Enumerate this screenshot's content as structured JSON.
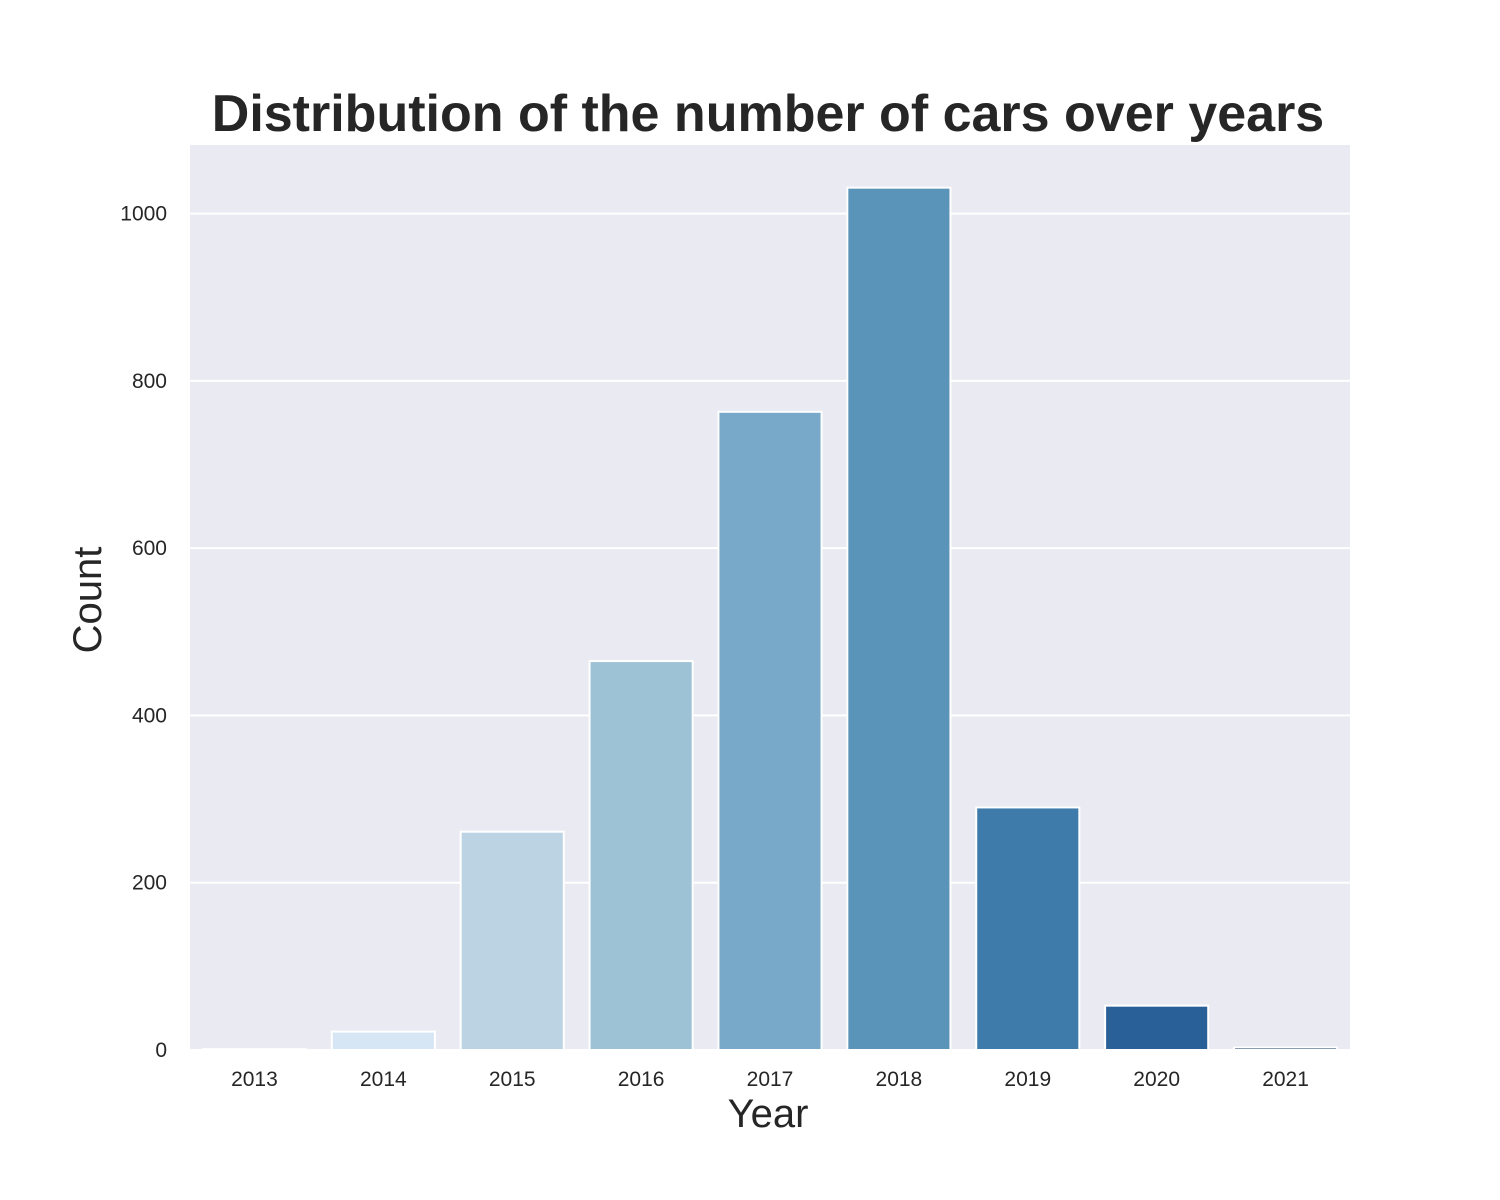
{
  "chart_data": {
    "type": "bar",
    "title": "Distribution of the number of cars over years",
    "xlabel": "Year",
    "ylabel": "Count",
    "categories": [
      "2013",
      "2014",
      "2015",
      "2016",
      "2017",
      "2018",
      "2019",
      "2020",
      "2021"
    ],
    "values": [
      1,
      22,
      261,
      465,
      763,
      1031,
      290,
      53,
      3
    ],
    "ylim": [
      0,
      1082
    ],
    "yticks": [
      0,
      200,
      400,
      600,
      800,
      1000
    ],
    "grid": true,
    "legend": "none",
    "colors": [
      "#f7fbff",
      "#d6e6f4",
      "#bcd3e4",
      "#9ec2d5",
      "#78a9c8",
      "#5b94b9",
      "#3e7bab",
      "#2a6098",
      "#1e3e68"
    ],
    "background": "#eaeaf2",
    "grid_color": "#ffffff"
  }
}
